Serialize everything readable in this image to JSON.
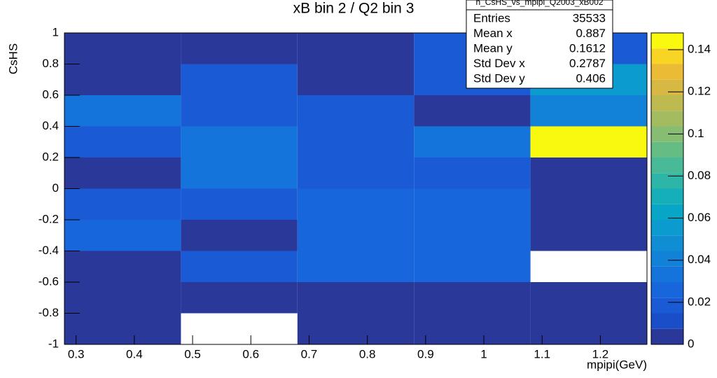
{
  "chart_data": {
    "type": "heatmap",
    "title": "xB bin 2 / Q2 bin 3",
    "x_label": "mpipi(GeV)",
    "y_label": "CsHS",
    "xbins": [
      0.28,
      0.48,
      0.68,
      0.88,
      1.08,
      1.28
    ],
    "ybins": [
      -1,
      -0.8,
      -0.6,
      -0.4,
      -0.2,
      0,
      0.2,
      0.4,
      0.6,
      0.8,
      1
    ],
    "values": [
      [
        0.004,
        null,
        0.004,
        0.004,
        0.004
      ],
      [
        0.004,
        0.004,
        0.004,
        0.004,
        0.004
      ],
      [
        0.004,
        0.016,
        0.028,
        0.028,
        null
      ],
      [
        0.024,
        0.004,
        0.028,
        0.028,
        0.004
      ],
      [
        0.016,
        0.016,
        0.028,
        0.028,
        0.004
      ],
      [
        0.004,
        0.036,
        0.016,
        0.016,
        0.004
      ],
      [
        0.02,
        0.03,
        0.016,
        0.03,
        0.146
      ],
      [
        0.03,
        0.022,
        0.016,
        0.004,
        0.038
      ],
      [
        0.004,
        0.016,
        0.004,
        0.018,
        0.052
      ],
      [
        0.004,
        0.004,
        0.004,
        0.018,
        0.018
      ]
    ],
    "xlim": [
      0.28,
      1.28
    ],
    "ylim": [
      -1,
      1
    ],
    "xticks": [
      0.3,
      0.4,
      0.5,
      0.6,
      0.7,
      0.8,
      0.9,
      1,
      1.1,
      1.2
    ],
    "yticks": [
      -1,
      -0.8,
      -0.6,
      -0.4,
      -0.2,
      0,
      0.2,
      0.4,
      0.6,
      0.8,
      1
    ],
    "zlim": [
      0,
      0.148
    ],
    "zticks": [
      0,
      0.02,
      0.04,
      0.06,
      0.08,
      0.1,
      0.12,
      0.14
    ],
    "colorscale": [
      "#2a3899",
      "#1a4ec9",
      "#1a5ad4",
      "#1766dc",
      "#1573dc",
      "#1281d8",
      "#0f8ed3",
      "#0b9bce",
      "#08a6c6",
      "#14afb8",
      "#2db6a8",
      "#48ba97",
      "#66bd84",
      "#86bd72",
      "#a3bc60",
      "#bfba50",
      "#d7b842",
      "#ecbb36",
      "#f8d525",
      "#f9f90f"
    ],
    "stats": {
      "title": "h_CsHS_vs_mpipi_Q2003_xB002",
      "rows": [
        {
          "label": "Entries",
          "value": 35533
        },
        {
          "label": "Mean x",
          "value": 0.887
        },
        {
          "label": "Mean y",
          "value": 0.1612
        },
        {
          "label": "Std Dev x",
          "value": 0.2787
        },
        {
          "label": "Std Dev y",
          "value": 0.406
        }
      ]
    }
  }
}
